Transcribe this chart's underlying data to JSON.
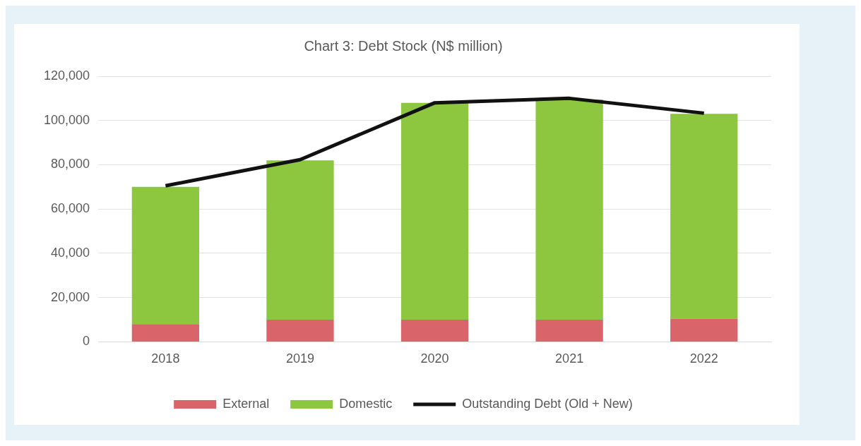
{
  "chart_data": {
    "type": "bar",
    "title": "Chart 3: Debt Stock (N$ million)",
    "categories": [
      "2018",
      "2019",
      "2020",
      "2021",
      "2022"
    ],
    "stacked": true,
    "series": [
      {
        "name": "External",
        "color": "#d9646a",
        "values": [
          8000,
          10000,
          10000,
          10000,
          10500
        ]
      },
      {
        "name": "Domestic",
        "color": "#8dc63f",
        "values": [
          62000,
          72000,
          98000,
          99500,
          92500
        ]
      },
      {
        "name": "Outstanding Debt (Old + New)",
        "type": "line",
        "color": "#111111",
        "values": [
          70500,
          82300,
          108000,
          110000,
          103300
        ]
      }
    ],
    "ylim": [
      0,
      120000
    ],
    "yticks": [
      0,
      {
        "value": 20000,
        "label": "20,000"
      },
      {
        "value": 40000,
        "label": "40,000"
      },
      {
        "value": 60000,
        "label": "60,000"
      },
      {
        "value": 80000,
        "label": "80,000"
      },
      {
        "value": 100000,
        "label": "100,000"
      },
      {
        "value": 120000,
        "label": "120,000"
      }
    ],
    "grid": "y",
    "legend": "bottom",
    "marker": "none"
  }
}
